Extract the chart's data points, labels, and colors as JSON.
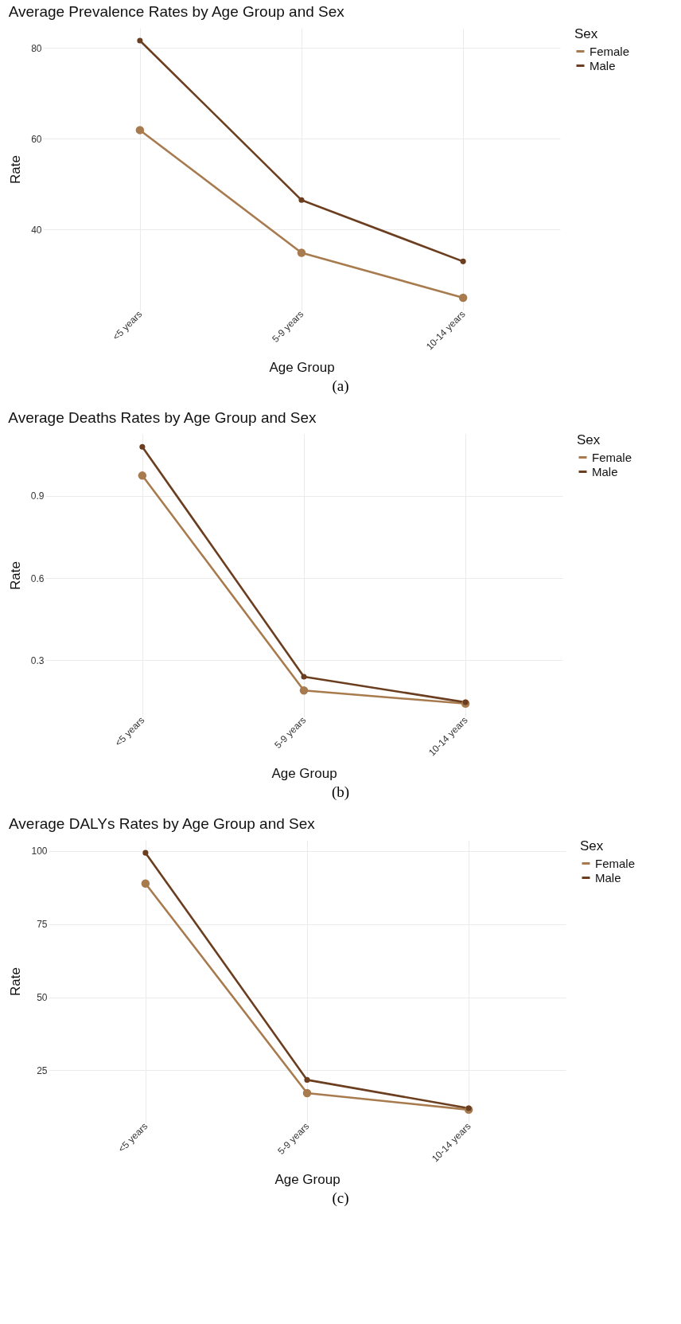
{
  "chart_data": [
    {
      "type": "line",
      "title": "Average Prevalence Rates by Age Group and Sex",
      "xlabel": "Age Group",
      "ylabel": "Rate",
      "legend_title": "Sex",
      "categories": [
        "<5 years",
        "5-9 years",
        "10-14 years"
      ],
      "series": [
        {
          "name": "Female",
          "color": "#a87b4f",
          "values": [
            61.9,
            34.9,
            25.0
          ]
        },
        {
          "name": "Male",
          "color": "#6b3e1f",
          "values": [
            81.6,
            46.5,
            33.0
          ]
        }
      ],
      "ylim": [
        22.2,
        84.4
      ],
      "yticks": [
        40,
        60,
        80
      ],
      "grid": true,
      "legend": "right",
      "marker": "circle",
      "annotations": [
        "(a)"
      ]
    },
    {
      "type": "line",
      "title": "Average Deaths Rates by Age Group and Sex",
      "xlabel": "Age Group",
      "ylabel": "Rate",
      "legend_title": "Sex",
      "categories": [
        "<5 years",
        "5-9 years",
        "10-14 years"
      ],
      "series": [
        {
          "name": "Female",
          "color": "#a87b4f",
          "values": [
            0.974,
            0.19,
            0.142
          ]
        },
        {
          "name": "Male",
          "color": "#6b3e1f",
          "values": [
            1.079,
            0.24,
            0.147
          ]
        }
      ],
      "ylim": [
        0.095,
        1.126
      ],
      "yticks": [
        0.3,
        0.6,
        0.9
      ],
      "grid": true,
      "legend": "right",
      "marker": "circle",
      "annotations": [
        "(b)"
      ]
    },
    {
      "type": "line",
      "title": "Average DALYs Rates by Age Group and Sex",
      "xlabel": "Age Group",
      "ylabel": "Rate",
      "legend_title": "Sex",
      "categories": [
        "<5 years",
        "5-9 years",
        "10-14 years"
      ],
      "series": [
        {
          "name": "Female",
          "color": "#a87b4f",
          "values": [
            88.9,
            17.2,
            11.5
          ]
        },
        {
          "name": "Male",
          "color": "#6b3e1f",
          "values": [
            99.4,
            21.7,
            12.0
          ]
        }
      ],
      "ylim": [
        7.1,
        103.8
      ],
      "yticks": [
        25,
        50,
        75,
        100
      ],
      "grid": true,
      "legend": "right",
      "marker": "circle",
      "annotations": [
        "(c)"
      ]
    }
  ]
}
